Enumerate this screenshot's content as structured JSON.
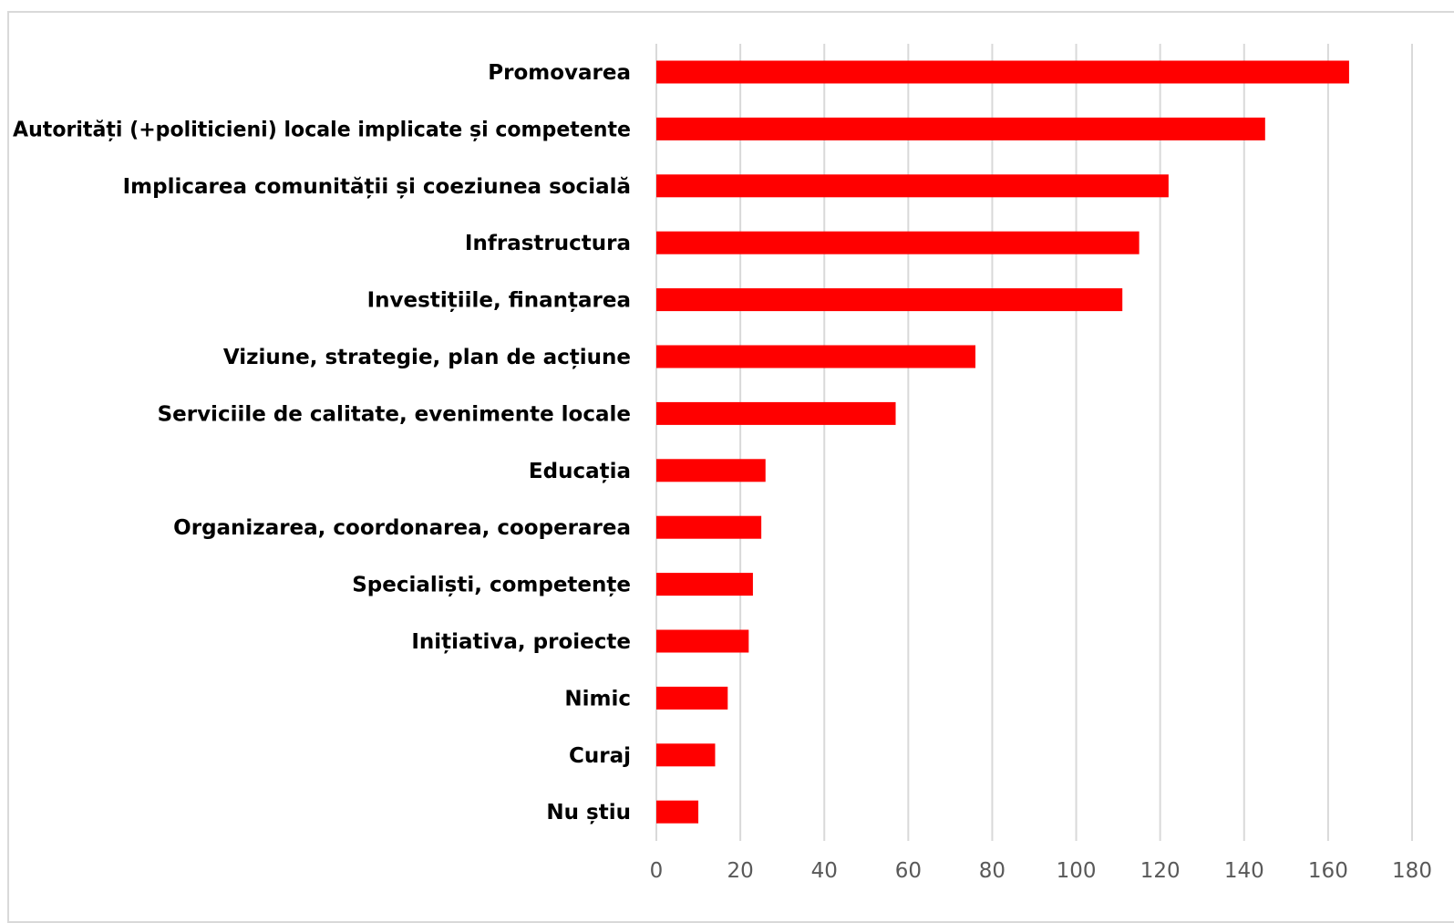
{
  "chart_data": {
    "type": "bar",
    "orientation": "horizontal",
    "categories": [
      "Promovarea",
      "Autorități (+politicieni) locale implicate și competente",
      "Implicarea comunității și coeziunea socială",
      "Infrastructura",
      "Investițiile, finanțarea",
      "Viziune, strategie, plan de acțiune",
      "Serviciile de calitate, evenimente locale",
      "Educația",
      "Organizarea, coordonarea, cooperarea",
      "Specialiști, competențe",
      "Inițiativa, proiecte",
      "Nimic",
      "Curaj",
      "Nu știu"
    ],
    "values": [
      165,
      145,
      122,
      115,
      111,
      76,
      57,
      26,
      25,
      23,
      22,
      17,
      14,
      10
    ],
    "xlim": [
      0,
      180
    ],
    "x_ticks": [
      "0",
      "20",
      "40",
      "60",
      "80",
      "100",
      "120",
      "140",
      "160",
      "180"
    ],
    "grid": true,
    "bar_color": "#ff0000",
    "grid_color": "#d9d9d9"
  }
}
